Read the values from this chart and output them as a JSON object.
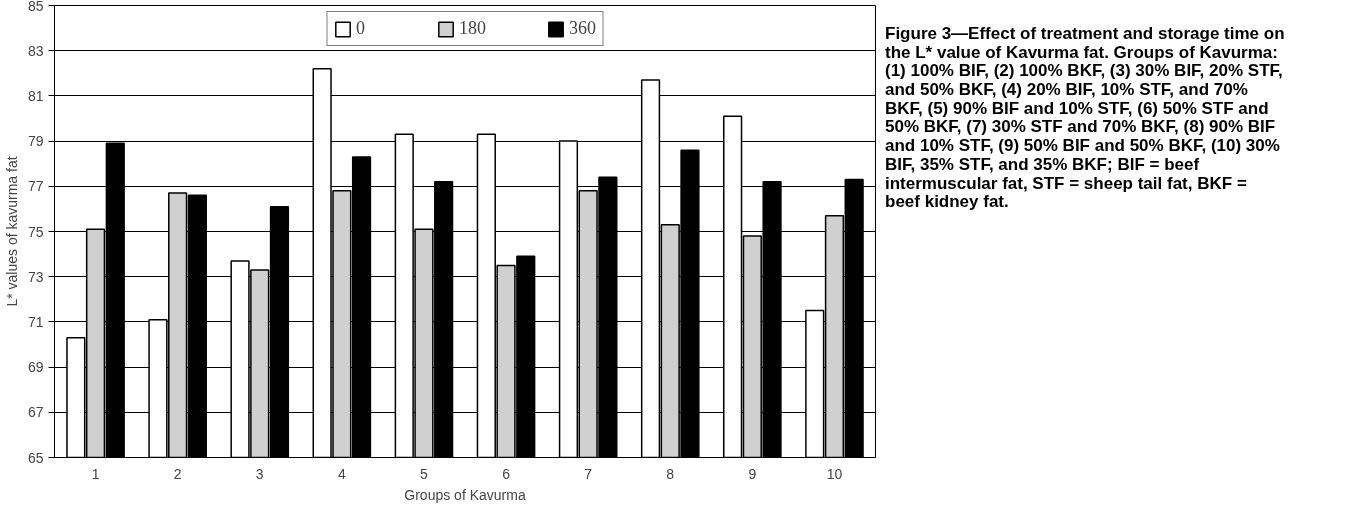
{
  "chart_data": {
    "type": "bar",
    "title": "Figure 3—Effect of treatment and storage time on the L* value of Kavurma fat. Groups of Kavurma: (1) 100% BIF, (2) 100% BKF, (3) 30% BIF, 20% STF, and 50% BKF, (4) 20% BIF, 10% STF, and 70% BKF, (5) 90% BIF and 10% STF, (6) 50% STF and 50% BKF, (7) 30% STF and 70% BKF, (8) 90% BIF and 10% STF, (9) 50% BIF and 50% BKF, (10) 30% BIF, 35% STF, and 35% BKF; BIF = beef intermuscular fat, STF = sheep tail fat, BKF = beef kidney fat.",
    "xlabel": "Groups of Kavurma",
    "ylabel": "L* values of kavurma fat",
    "categories": [
      "1",
      "2",
      "3",
      "4",
      "5",
      "6",
      "7",
      "8",
      "9",
      "10"
    ],
    "series": [
      {
        "name": "0",
        "color": "#ffffff",
        "values": [
          70.3,
          71.1,
          73.7,
          82.2,
          79.3,
          79.3,
          79.0,
          81.7,
          80.1,
          71.5
        ]
      },
      {
        "name": "180",
        "color": "#d0d0d0",
        "values": [
          75.1,
          76.7,
          73.3,
          76.8,
          75.1,
          73.5,
          76.8,
          75.3,
          74.8,
          75.7
        ]
      },
      {
        "name": "360",
        "color": "#000000",
        "values": [
          78.9,
          76.6,
          76.1,
          78.3,
          77.2,
          73.9,
          77.4,
          78.6,
          77.2,
          77.3
        ]
      }
    ],
    "ylim": [
      65,
      85
    ],
    "yticks": [
      65,
      67,
      69,
      71,
      73,
      75,
      77,
      79,
      81,
      83,
      85
    ],
    "grid": "y",
    "legend": "top"
  }
}
